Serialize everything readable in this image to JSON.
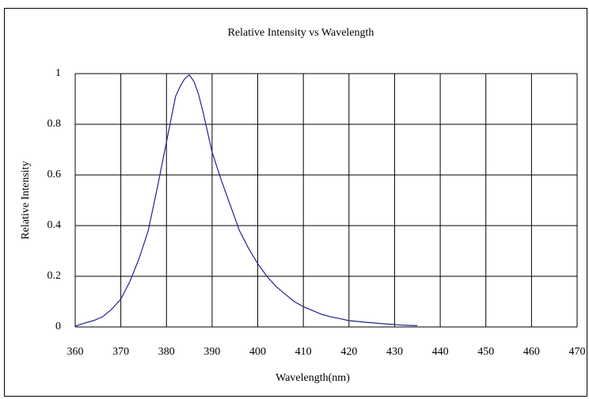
{
  "chart_data": {
    "type": "line",
    "title": "Relative Intensity vs Wavelength",
    "x_label": "Wavelength(nm)",
    "y_label": "Relative Intensity",
    "x": [
      360,
      362,
      364,
      366,
      368,
      370,
      372,
      374,
      376,
      378,
      380,
      381,
      382,
      383,
      384,
      385,
      386,
      387,
      388,
      389,
      390,
      392,
      394,
      396,
      398,
      400,
      402,
      404,
      406,
      408,
      410,
      412,
      414,
      416,
      418,
      420,
      424,
      428,
      432,
      435
    ],
    "series": [
      {
        "name": "Relative Intensity",
        "color": "#22228f",
        "values": [
          0.003,
          0.015,
          0.025,
          0.04,
          0.07,
          0.11,
          0.18,
          0.27,
          0.38,
          0.55,
          0.73,
          0.82,
          0.91,
          0.95,
          0.98,
          0.995,
          0.97,
          0.92,
          0.85,
          0.77,
          0.69,
          0.58,
          0.48,
          0.38,
          0.31,
          0.25,
          0.2,
          0.16,
          0.13,
          0.1,
          0.08,
          0.065,
          0.05,
          0.04,
          0.033,
          0.025,
          0.018,
          0.012,
          0.007,
          0.005
        ]
      }
    ],
    "xlim": [
      360,
      470
    ],
    "xticks": [
      360,
      370,
      380,
      390,
      400,
      410,
      420,
      430,
      440,
      450,
      460,
      470
    ],
    "ylim": [
      0,
      1
    ],
    "yticks": [
      0,
      0.2,
      0.4,
      0.6,
      0.8,
      1
    ],
    "grid": true
  }
}
